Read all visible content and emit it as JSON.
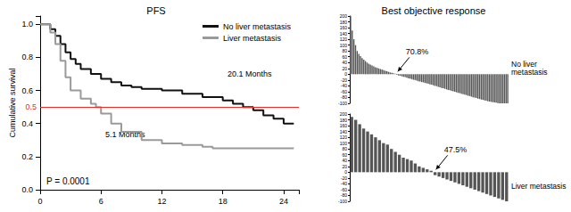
{
  "chart_data": [
    {
      "type": "line",
      "title": "PFS",
      "ylabel": "Cumulative survival",
      "line_style": "step",
      "grid": false,
      "legend": "upper right",
      "xlim": [
        0,
        25.5
      ],
      "xticks": [
        0,
        6,
        12,
        18,
        24
      ],
      "ylim": [
        0,
        1.05
      ],
      "yticks": [
        {
          "value": 0,
          "label": "0.0"
        },
        {
          "value": 0.2,
          "label": "0.2"
        },
        {
          "value": 0.4,
          "label": "0.4"
        },
        {
          "value": 0.6,
          "label": "0.6"
        },
        {
          "value": 0.8,
          "label": "0.8"
        },
        {
          "value": 1,
          "label": "1.0"
        }
      ],
      "hline": {
        "value": 0.5,
        "label": "0.5",
        "color": "#e03030"
      },
      "annotations": [
        "20.1 Months",
        "5.1 Months",
        "P = 0.0001"
      ],
      "series": [
        {
          "name": "No liver metastasis",
          "color": "#111111",
          "x": [
            0,
            1,
            1.5,
            2,
            2.5,
            3,
            3.5,
            4,
            5,
            6,
            7,
            8,
            9,
            10,
            12,
            14,
            16,
            18,
            19,
            20,
            21,
            22,
            23,
            24,
            25
          ],
          "values": [
            1.0,
            0.97,
            0.93,
            0.88,
            0.83,
            0.79,
            0.76,
            0.73,
            0.7,
            0.67,
            0.65,
            0.63,
            0.62,
            0.61,
            0.6,
            0.58,
            0.56,
            0.54,
            0.52,
            0.5,
            0.48,
            0.45,
            0.43,
            0.4,
            0.4
          ]
        },
        {
          "name": "Liver metastasis",
          "color": "#9a9a9a",
          "x": [
            0,
            1,
            1.5,
            2,
            2.5,
            3,
            4,
            5,
            5.5,
            6,
            7,
            8,
            10,
            12,
            14,
            16,
            17,
            25
          ],
          "values": [
            1.0,
            0.95,
            0.88,
            0.78,
            0.68,
            0.6,
            0.55,
            0.52,
            0.5,
            0.46,
            0.4,
            0.35,
            0.3,
            0.28,
            0.27,
            0.26,
            0.25,
            0.25
          ]
        }
      ]
    },
    {
      "type": "bar",
      "title": "Best objective response",
      "tick_labels": "y",
      "grid": false,
      "color": "#555555",
      "annotations": [
        "70.8%",
        "No liver metastasis"
      ],
      "ylim": [
        -100,
        200
      ],
      "yticks": [
        -100,
        -80,
        -60,
        -40,
        -20,
        0,
        20,
        40,
        60,
        80,
        100,
        120,
        140,
        160,
        180,
        200
      ],
      "categories": [
        null,
        null,
        null,
        null,
        null,
        null,
        null,
        null,
        null,
        null,
        null,
        null,
        null,
        null,
        null,
        null,
        null,
        null,
        null,
        null,
        null,
        null,
        null,
        null,
        null,
        null,
        null,
        null,
        null,
        null,
        null,
        null,
        null,
        null,
        null,
        null,
        null,
        null,
        null,
        null,
        null,
        null,
        null,
        null,
        null,
        null,
        null,
        null,
        null,
        null,
        null,
        null,
        null,
        null,
        null,
        null,
        null,
        null,
        null,
        null,
        null,
        null,
        null,
        null,
        null,
        null,
        null,
        null,
        null,
        null,
        null,
        null,
        null,
        null,
        null,
        null,
        null,
        null,
        null,
        null,
        null,
        null,
        null,
        null,
        null,
        null,
        null,
        null,
        null,
        null,
        null,
        null,
        null,
        null,
        null,
        null
      ],
      "values": [
        200,
        150,
        120,
        100,
        80,
        70,
        62,
        55,
        50,
        45,
        40,
        36,
        33,
        30,
        27,
        24,
        22,
        20,
        18,
        16,
        14,
        12,
        10,
        8,
        6,
        5,
        3,
        2,
        -2,
        -4,
        -5,
        -7,
        -9,
        -10,
        -12,
        -14,
        -15,
        -17,
        -19,
        -20,
        -22,
        -24,
        -25,
        -27,
        -28,
        -30,
        -31,
        -33,
        -35,
        -36,
        -38,
        -40,
        -41,
        -43,
        -45,
        -47,
        -48,
        -50,
        -52,
        -54,
        -55,
        -57,
        -59,
        -60,
        -62,
        -64,
        -65,
        -67,
        -69,
        -70,
        -72,
        -74,
        -75,
        -77,
        -79,
        -80,
        -82,
        -84,
        -85,
        -87,
        -88,
        -90,
        -91,
        -93,
        -94,
        -95,
        -96,
        -97,
        -98,
        -99,
        -100,
        -100,
        -100,
        -100,
        -100,
        -100
      ]
    },
    {
      "type": "bar",
      "tick_labels": "y",
      "grid": false,
      "color": "#555555",
      "annotations": [
        "47.5%",
        "Liver metastasis"
      ],
      "ylim": [
        -100,
        200
      ],
      "yticks": [
        -100,
        -80,
        -60,
        -40,
        -20,
        0,
        20,
        40,
        60,
        80,
        100,
        120,
        140,
        160,
        180,
        200
      ],
      "categories": [
        null,
        null,
        null,
        null,
        null,
        null,
        null,
        null,
        null,
        null,
        null,
        null,
        null,
        null,
        null,
        null,
        null,
        null,
        null,
        null,
        null,
        null,
        null,
        null,
        null,
        null,
        null,
        null,
        null,
        null,
        null,
        null,
        null,
        null,
        null,
        null,
        null,
        null,
        null,
        null
      ],
      "values": [
        190,
        180,
        165,
        150,
        140,
        130,
        120,
        110,
        100,
        95,
        80,
        70,
        60,
        50,
        45,
        40,
        30,
        20,
        15,
        10,
        5,
        -10,
        -15,
        -20,
        -25,
        -30,
        -35,
        -40,
        -45,
        -50,
        -55,
        -60,
        -65,
        -70,
        -75,
        -80,
        -85,
        -90,
        -95,
        -100
      ]
    }
  ]
}
